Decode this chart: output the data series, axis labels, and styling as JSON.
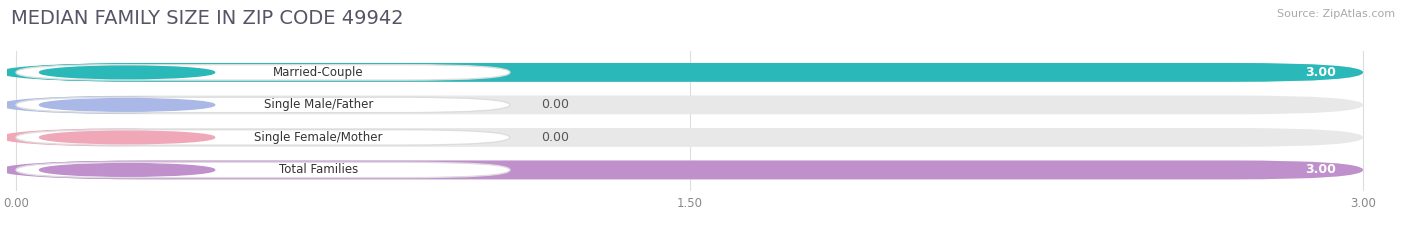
{
  "title": "MEDIAN FAMILY SIZE IN ZIP CODE 49942",
  "source": "Source: ZipAtlas.com",
  "categories": [
    "Married-Couple",
    "Single Male/Father",
    "Single Female/Mother",
    "Total Families"
  ],
  "values": [
    3.0,
    0.0,
    0.0,
    3.0
  ],
  "bar_colors": [
    "#2ab8b8",
    "#aab8e8",
    "#f0a8b8",
    "#c090cc"
  ],
  "track_color": "#e8e8e8",
  "xlim": [
    0,
    3.0
  ],
  "xticks": [
    0.0,
    1.5,
    3.0
  ],
  "xtick_labels": [
    "0.00",
    "1.50",
    "3.00"
  ],
  "value_labels": [
    "3.00",
    "0.00",
    "0.00",
    "3.00"
  ],
  "background_color": "#ffffff",
  "title_fontsize": 14,
  "bar_height": 0.58,
  "figsize": [
    14.06,
    2.33
  ]
}
